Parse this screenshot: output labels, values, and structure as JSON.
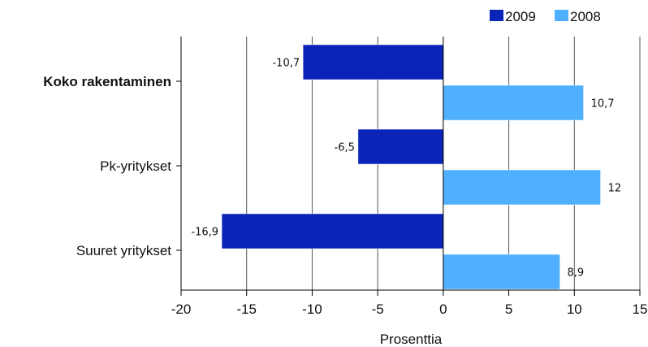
{
  "chart_data": {
    "type": "bar",
    "orientation": "horizontal",
    "categories": [
      "Koko rakentaminen",
      "Pk-yritykset",
      "Suuret yritykset"
    ],
    "category_bold": [
      true,
      false,
      false
    ],
    "series": [
      {
        "name": "2009",
        "color": "#0a24b8",
        "values": [
          -10.7,
          -6.5,
          -16.9
        ],
        "labels": [
          "-10,7",
          "-6,5",
          "-16,9"
        ]
      },
      {
        "name": "2008",
        "color": "#4fb0ff",
        "values": [
          10.7,
          12,
          8.9
        ],
        "labels": [
          "10,7",
          "12",
          "8,9"
        ]
      }
    ],
    "xlabel": "Prosenttia",
    "xlim": [
      -20,
      15
    ],
    "xticks": [
      -20,
      -15,
      -10,
      -5,
      0,
      5,
      10,
      15
    ],
    "grid": true,
    "legend": "top-right"
  }
}
